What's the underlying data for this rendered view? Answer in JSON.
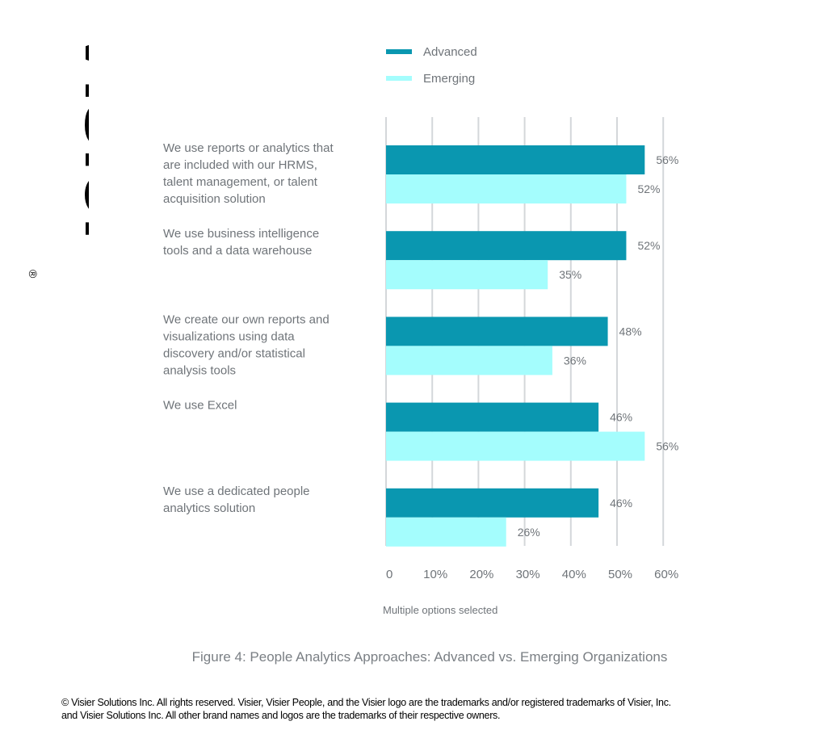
{
  "logo": {
    "text": "Visier",
    "mark": "®"
  },
  "chart_data": {
    "type": "bar",
    "orientation": "horizontal",
    "categories": [
      [
        "We use reports or analytics that",
        "are included with our HRMS,",
        "talent management, or talent",
        "acquisition solution"
      ],
      [
        "We use business intelligence",
        "tools and a data warehouse"
      ],
      [
        "We create our own reports and",
        "visualizations using data",
        "discovery and/or statistical",
        "analysis tools"
      ],
      [
        "We use Excel"
      ],
      [
        "We use a dedicated people",
        "analytics solution"
      ]
    ],
    "series": [
      {
        "name": "Advanced",
        "color": "#0a97b0",
        "values": [
          56,
          52,
          48,
          46,
          46
        ],
        "labels": [
          "56%",
          "52%",
          "48%",
          "46%",
          "46%"
        ]
      },
      {
        "name": "Emerging",
        "color": "#a4fdfd",
        "values": [
          52,
          35,
          36,
          56,
          26
        ],
        "labels": [
          "52%",
          "35%",
          "36%",
          "56%",
          "26%"
        ]
      }
    ],
    "xticks": [
      "0",
      "10%",
      "20%",
      "30%",
      "40%",
      "50%",
      "60%"
    ],
    "xlim": [
      0,
      60
    ],
    "grid": true,
    "legend_position": "top",
    "note": "Multiple options selected"
  },
  "caption": "Figure 4: People Analytics Approaches: Advanced vs. Emerging Organizations",
  "footer": {
    "line1": "© Visier Solutions Inc. All rights reserved. Visier, Visier People, and the Visier logo are the trademarks and/or registered trademarks of Visier, Inc.",
    "line2": "and Visier Solutions Inc. All other brand names and logos are the trademarks of their respective owners."
  }
}
